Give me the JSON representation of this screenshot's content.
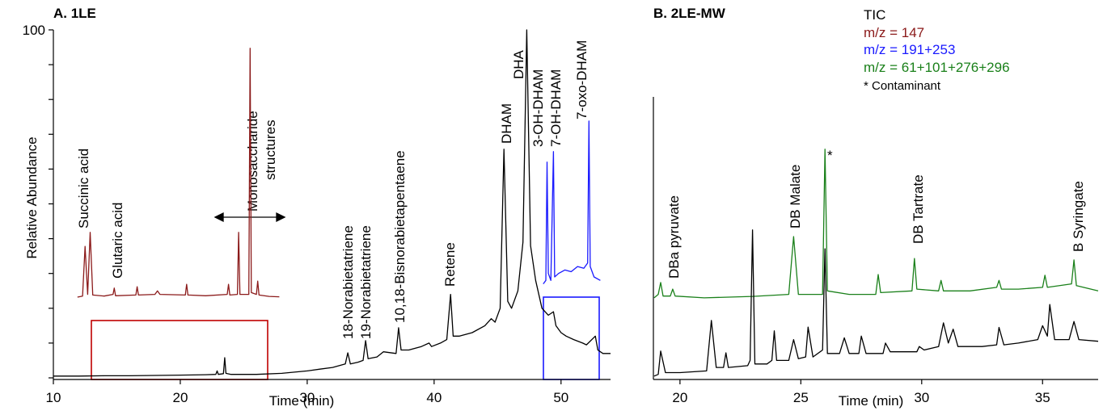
{
  "chart_data": [
    {
      "type": "line",
      "title": "A. 1LE",
      "xlabel": "Time (min)",
      "ylabel": "Relative Abundance",
      "xlim": [
        10,
        53.9
      ],
      "ylim": [
        0,
        100
      ],
      "xticks": [
        10,
        20,
        30,
        40,
        50
      ],
      "yticks": [
        100
      ],
      "yminorticks": [
        0,
        10,
        20,
        30,
        40,
        50,
        60,
        70,
        80,
        90
      ],
      "annotations": [
        "Succinic acid",
        "Glutaric acid",
        "Monosaccharide",
        "structures",
        "18-Norabietatriene",
        "19-Norabietatriene",
        "10,18-Bisnorabietapentaene",
        "Retene",
        "DHAM",
        "DHA",
        "3-OH-DHAM",
        "7-OH-DHAM",
        "7-oxo-DHAM"
      ],
      "series": [
        {
          "color": "#000000",
          "x": [
            10,
            12,
            14,
            16,
            18,
            20,
            22,
            22.8,
            22.9,
            23.0,
            23.4,
            23.5,
            23.6,
            24,
            26,
            28,
            30,
            31,
            32,
            33,
            33.2,
            33.4,
            34,
            34.4,
            34.6,
            34.8,
            35.5,
            36,
            37,
            37.2,
            37.4,
            38,
            39,
            39.6,
            39.8,
            40.5,
            41,
            41.3,
            41.5,
            42,
            43,
            44,
            44.5,
            44.8,
            45.2,
            45.5,
            45.8,
            46.1,
            46.6,
            47.0,
            47.3,
            47.6,
            48,
            48.5,
            49,
            49.4,
            49.6,
            50,
            50.4,
            51,
            51.7,
            52,
            52.7,
            52.9,
            53.3,
            53.9
          ],
          "values": [
            0.5,
            0.5,
            0.6,
            0.6,
            0.7,
            0.8,
            0.9,
            1,
            2,
            1,
            1.2,
            5.8,
            1.3,
            1,
            1,
            1.3,
            2,
            2.5,
            3,
            4,
            7.2,
            4,
            4.5,
            5,
            10.7,
            5.5,
            6,
            7.5,
            7,
            14.4,
            8,
            8,
            9,
            10,
            9,
            10,
            11,
            24,
            12,
            12,
            13,
            15,
            17,
            16,
            20,
            65.7,
            22,
            20,
            25,
            39,
            100,
            38,
            28,
            20,
            18,
            19,
            15,
            13,
            12,
            11,
            10,
            9.5,
            12,
            8,
            7,
            7
          ]
        },
        {
          "color": "#8b1a1a",
          "x": [
            11.9,
            12.3,
            12.5,
            12.7,
            12.9,
            13.1,
            14,
            14.7,
            14.8,
            14.9,
            16.5,
            16.6,
            16.7,
            18,
            18.2,
            18.4,
            20.4,
            20.5,
            20.6,
            22,
            23.7,
            23.8,
            23.9,
            24.5,
            24.6,
            24.7,
            25.4,
            25.5,
            25.6,
            26,
            26.1,
            26.2,
            27,
            27.8
          ],
          "values": [
            23.2,
            23.5,
            37.8,
            24,
            41.8,
            23.8,
            23.5,
            24,
            25.8,
            23.6,
            23.8,
            26.2,
            23.8,
            24,
            25,
            24,
            23.8,
            26.9,
            23.8,
            23.6,
            24,
            26.9,
            23.8,
            24,
            41.8,
            24,
            24,
            94.7,
            24.5,
            24,
            27.8,
            23.8,
            23.4,
            23.3
          ]
        },
        {
          "color": "#1a1aff",
          "x": [
            48.6,
            48.8,
            48.9,
            49.0,
            49.2,
            49.4,
            49.5,
            49.8,
            50.3,
            50.8,
            51.3,
            51.8,
            52.1,
            52.2,
            52.3,
            52.6,
            53.1
          ],
          "values": [
            27,
            28,
            62,
            30,
            28,
            65,
            29,
            30,
            31,
            30.5,
            32,
            31.5,
            33,
            73.8,
            32,
            29,
            28
          ]
        }
      ]
    },
    {
      "type": "line",
      "title": "B. 2LE-MW",
      "xlabel": "Time (min)",
      "xlim": [
        18.9,
        37.3
      ],
      "ylim": [
        0,
        100
      ],
      "xticks": [
        20,
        25,
        30,
        35
      ],
      "annotations": [
        "DBa pyruvate",
        "DB Malate",
        "*",
        "DB Tartrate",
        "B Syringate"
      ],
      "legend": {
        "entries": [
          "TIC",
          "m/z = 147",
          "m/z = 191+253",
          "m/z = 61+101+276+296"
        ],
        "colors": [
          "#000000",
          "#8b1a1a",
          "#1a1aff",
          "#1a801a"
        ],
        "note": "* Contaminant"
      },
      "series": [
        {
          "color": "#1a801a",
          "x": [
            18.93,
            19.1,
            19.2,
            19.3,
            19.6,
            19.7,
            19.8,
            21,
            23,
            24.5,
            24.7,
            24.9,
            25.9,
            26.0,
            26.1,
            27,
            28.1,
            28.2,
            28.3,
            29.6,
            29.7,
            29.8,
            30.7,
            30.8,
            30.9,
            32,
            33.1,
            33.2,
            33.3,
            34,
            35,
            35.1,
            35.2,
            36.2,
            36.3,
            36.4,
            37.3
          ],
          "values": [
            23,
            24,
            27.4,
            23.5,
            23.5,
            25.5,
            23.5,
            23,
            23.4,
            24,
            40.6,
            24,
            24,
            65.7,
            25,
            24,
            24,
            29.7,
            24.5,
            25,
            34.3,
            25.5,
            25,
            28,
            25,
            25,
            26,
            28,
            25.5,
            25.5,
            26,
            29.5,
            26,
            27,
            33.9,
            26.5,
            25
          ]
        },
        {
          "color": "#000000",
          "x": [
            18.93,
            19.1,
            19.2,
            19.4,
            20,
            21.1,
            21.3,
            21.5,
            21.8,
            21.9,
            22,
            22.8,
            22.9,
            23.0,
            23.1,
            23.6,
            23.8,
            23.9,
            24.0,
            24.5,
            24.7,
            24.9,
            25.2,
            25.3,
            25.5,
            25.9,
            26.0,
            26.1,
            26.6,
            26.8,
            27,
            27.4,
            27.5,
            27.7,
            28.4,
            28.5,
            28.7,
            29.8,
            29.9,
            30.1,
            30.7,
            30.9,
            31.1,
            31.3,
            31.5,
            32.5,
            33.1,
            33.2,
            33.4,
            34,
            34.8,
            35.0,
            35.2,
            35.3,
            35.5,
            36.1,
            36.3,
            36.5,
            37.3
          ],
          "values": [
            0.5,
            1,
            7.7,
            1.5,
            1.5,
            2,
            16.5,
            3,
            3,
            7.2,
            3,
            3.5,
            5,
            42.5,
            4,
            4,
            5,
            13.5,
            5,
            5,
            11,
            5.5,
            6,
            14.6,
            6,
            8,
            37.1,
            7,
            7,
            11.5,
            7,
            7,
            12,
            7,
            7,
            10,
            7.5,
            7.5,
            9,
            8,
            9,
            15.8,
            10,
            14,
            9,
            9,
            9.5,
            14.5,
            9.5,
            10,
            11,
            15,
            12,
            21.1,
            11,
            11,
            16.2,
            11,
            10.5
          ]
        }
      ]
    }
  ]
}
